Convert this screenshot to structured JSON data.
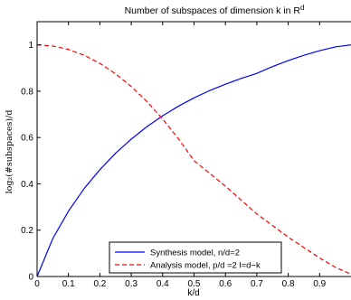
{
  "chart_data": {
    "type": "line",
    "title_main": "Number of subspaces of dimension k in R",
    "title_sup": "d",
    "xlabel": "k/d",
    "ylabel": "log₂(#subspaces)/d",
    "xlim": [
      0,
      1
    ],
    "ylim": [
      0,
      1.1
    ],
    "xticks": [
      0,
      0.1,
      0.2,
      0.3,
      0.4,
      0.5,
      0.6,
      0.7,
      0.8,
      0.9
    ],
    "xtick_labels": [
      "0",
      "0.1",
      "0.2",
      "0.3",
      "0.4",
      "0.5",
      "0.6",
      "0.7",
      "0.8",
      "0.9"
    ],
    "yticks": [
      0,
      0.2,
      0.4,
      0.6,
      0.8,
      1
    ],
    "ytick_labels": [
      "0",
      "0.2",
      "0.4",
      "0.6",
      "0.8",
      "1"
    ],
    "grid": false,
    "legend_position": "bottom-center",
    "x": [
      0,
      0.05,
      0.1,
      0.15,
      0.2,
      0.25,
      0.3,
      0.35,
      0.4,
      0.45,
      0.5,
      0.55,
      0.6,
      0.65,
      0.7,
      0.75,
      0.8,
      0.85,
      0.9,
      0.95,
      1.0
    ],
    "series": [
      {
        "name": "Synthesis model, n/d=2",
        "color": "#0000ff",
        "style": "solid",
        "values": [
          0,
          0.164,
          0.282,
          0.38,
          0.461,
          0.532,
          0.593,
          0.647,
          0.694,
          0.735,
          0.771,
          0.803,
          0.83,
          0.855,
          0.877,
          0.906,
          0.932,
          0.955,
          0.975,
          0.991,
          1.0
        ]
      },
      {
        "name": "Analysis model, p/d =2 l=d−k",
        "color": "#ff0000",
        "style": "dashed",
        "values": [
          1.0,
          0.995,
          0.98,
          0.955,
          0.92,
          0.875,
          0.82,
          0.755,
          0.68,
          0.595,
          0.5,
          0.445,
          0.39,
          0.33,
          0.27,
          0.22,
          0.17,
          0.125,
          0.08,
          0.04,
          0.01
        ]
      }
    ]
  }
}
